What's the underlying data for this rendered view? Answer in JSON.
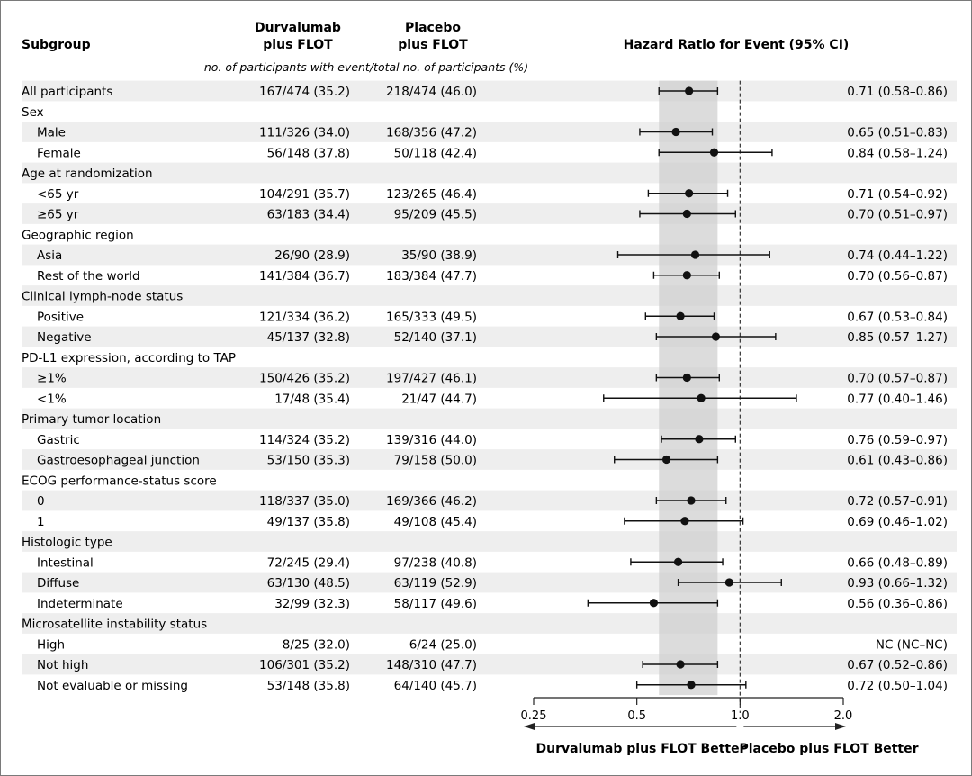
{
  "chart_data": {
    "type": "forest",
    "headers": {
      "subgroup": "Subgroup",
      "col1_line1": "Durvalumab",
      "col1_line2": "plus FLOT",
      "col2_line1": "Placebo",
      "col2_line2": "plus FLOT",
      "hr_title": "Hazard Ratio for Event (95% CI)",
      "subheader": "no. of participants with event/total no. of participants (%)"
    },
    "x_scale": "log",
    "xlim": [
      0.25,
      2.0
    ],
    "ticks": [
      0.25,
      0.5,
      1.0,
      2.0
    ],
    "tick_labels": [
      "0.25",
      "0.5",
      "1.0",
      "2.0"
    ],
    "reference_line": 1.0,
    "overall_ci_band": [
      0.58,
      0.86
    ],
    "left_direction": "Durvalumab plus FLOT Better",
    "right_direction": "Placebo plus FLOT Better",
    "rows": [
      {
        "label": "All participants",
        "indent": 0,
        "shaded": true,
        "durva": "167/474 (35.2)",
        "placebo": "218/474 (46.0)",
        "hr": 0.71,
        "lo": 0.58,
        "hi": 0.86,
        "hr_text": "0.71 (0.58–0.86)"
      },
      {
        "label": "Sex",
        "indent": 0,
        "shaded": false,
        "header": true
      },
      {
        "label": "Male",
        "indent": 1,
        "shaded": true,
        "durva": "111/326 (34.0)",
        "placebo": "168/356 (47.2)",
        "hr": 0.65,
        "lo": 0.51,
        "hi": 0.83,
        "hr_text": "0.65 (0.51–0.83)"
      },
      {
        "label": "Female",
        "indent": 1,
        "shaded": false,
        "durva": "56/148 (37.8)",
        "placebo": "50/118 (42.4)",
        "hr": 0.84,
        "lo": 0.58,
        "hi": 1.24,
        "hr_text": "0.84 (0.58–1.24)"
      },
      {
        "label": "Age at randomization",
        "indent": 0,
        "shaded": true,
        "header": true
      },
      {
        "label": "<65 yr",
        "indent": 1,
        "shaded": false,
        "durva": "104/291 (35.7)",
        "placebo": "123/265 (46.4)",
        "hr": 0.71,
        "lo": 0.54,
        "hi": 0.92,
        "hr_text": "0.71 (0.54–0.92)"
      },
      {
        "label": "≥65 yr",
        "indent": 1,
        "shaded": true,
        "durva": "63/183 (34.4)",
        "placebo": "95/209 (45.5)",
        "hr": 0.7,
        "lo": 0.51,
        "hi": 0.97,
        "hr_text": "0.70 (0.51–0.97)"
      },
      {
        "label": "Geographic region",
        "indent": 0,
        "shaded": false,
        "header": true
      },
      {
        "label": "Asia",
        "indent": 1,
        "shaded": true,
        "durva": "26/90 (28.9)",
        "placebo": "35/90 (38.9)",
        "hr": 0.74,
        "lo": 0.44,
        "hi": 1.22,
        "hr_text": "0.74 (0.44–1.22)"
      },
      {
        "label": "Rest of the world",
        "indent": 1,
        "shaded": false,
        "durva": "141/384 (36.7)",
        "placebo": "183/384 (47.7)",
        "hr": 0.7,
        "lo": 0.56,
        "hi": 0.87,
        "hr_text": "0.70 (0.56–0.87)"
      },
      {
        "label": "Clinical lymph-node status",
        "indent": 0,
        "shaded": true,
        "header": true
      },
      {
        "label": "Positive",
        "indent": 1,
        "shaded": false,
        "durva": "121/334 (36.2)",
        "placebo": "165/333 (49.5)",
        "hr": 0.67,
        "lo": 0.53,
        "hi": 0.84,
        "hr_text": "0.67 (0.53–0.84)"
      },
      {
        "label": "Negative",
        "indent": 1,
        "shaded": true,
        "durva": "45/137 (32.8)",
        "placebo": "52/140 (37.1)",
        "hr": 0.85,
        "lo": 0.57,
        "hi": 1.27,
        "hr_text": "0.85 (0.57–1.27)"
      },
      {
        "label": "PD-L1 expression, according to TAP",
        "indent": 0,
        "shaded": false,
        "header": true
      },
      {
        "label": "≥1%",
        "indent": 1,
        "shaded": true,
        "durva": "150/426 (35.2)",
        "placebo": "197/427 (46.1)",
        "hr": 0.7,
        "lo": 0.57,
        "hi": 0.87,
        "hr_text": "0.70 (0.57–0.87)"
      },
      {
        "label": "<1%",
        "indent": 1,
        "shaded": false,
        "durva": "17/48 (35.4)",
        "placebo": "21/47 (44.7)",
        "hr": 0.77,
        "lo": 0.4,
        "hi": 1.46,
        "hr_text": "0.77 (0.40–1.46)"
      },
      {
        "label": "Primary tumor location",
        "indent": 0,
        "shaded": true,
        "header": true
      },
      {
        "label": "Gastric",
        "indent": 1,
        "shaded": false,
        "durva": "114/324 (35.2)",
        "placebo": "139/316 (44.0)",
        "hr": 0.76,
        "lo": 0.59,
        "hi": 0.97,
        "hr_text": "0.76 (0.59–0.97)"
      },
      {
        "label": "Gastroesophageal junction",
        "indent": 1,
        "shaded": true,
        "durva": "53/150 (35.3)",
        "placebo": "79/158 (50.0)",
        "hr": 0.61,
        "lo": 0.43,
        "hi": 0.86,
        "hr_text": "0.61 (0.43–0.86)"
      },
      {
        "label": "ECOG performance-status score",
        "indent": 0,
        "shaded": false,
        "header": true
      },
      {
        "label": "0",
        "indent": 1,
        "shaded": true,
        "durva": "118/337 (35.0)",
        "placebo": "169/366 (46.2)",
        "hr": 0.72,
        "lo": 0.57,
        "hi": 0.91,
        "hr_text": "0.72 (0.57–0.91)"
      },
      {
        "label": "1",
        "indent": 1,
        "shaded": false,
        "durva": "49/137 (35.8)",
        "placebo": "49/108 (45.4)",
        "hr": 0.69,
        "lo": 0.46,
        "hi": 1.02,
        "hr_text": "0.69 (0.46–1.02)"
      },
      {
        "label": "Histologic type",
        "indent": 0,
        "shaded": true,
        "header": true
      },
      {
        "label": "Intestinal",
        "indent": 1,
        "shaded": false,
        "durva": "72/245 (29.4)",
        "placebo": "97/238 (40.8)",
        "hr": 0.66,
        "lo": 0.48,
        "hi": 0.89,
        "hr_text": "0.66 (0.48–0.89)"
      },
      {
        "label": "Diffuse",
        "indent": 1,
        "shaded": true,
        "durva": "63/130 (48.5)",
        "placebo": "63/119 (52.9)",
        "hr": 0.93,
        "lo": 0.66,
        "hi": 1.32,
        "hr_text": "0.93 (0.66–1.32)"
      },
      {
        "label": "Indeterminate",
        "indent": 1,
        "shaded": false,
        "durva": "32/99 (32.3)",
        "placebo": "58/117 (49.6)",
        "hr": 0.56,
        "lo": 0.36,
        "hi": 0.86,
        "hr_text": "0.56 (0.36–0.86)"
      },
      {
        "label": "Microsatellite instability status",
        "indent": 0,
        "shaded": true,
        "header": true
      },
      {
        "label": "High",
        "indent": 1,
        "shaded": false,
        "durva": "8/25 (32.0)",
        "placebo": "6/24 (25.0)",
        "hr": null,
        "lo": null,
        "hi": null,
        "hr_text": "NC (NC–NC)"
      },
      {
        "label": "Not high",
        "indent": 1,
        "shaded": true,
        "durva": "106/301 (35.2)",
        "placebo": "148/310 (47.7)",
        "hr": 0.67,
        "lo": 0.52,
        "hi": 0.86,
        "hr_text": "0.67 (0.52–0.86)"
      },
      {
        "label": "Not evaluable or missing",
        "indent": 1,
        "shaded": false,
        "durva": "53/148 (35.8)",
        "placebo": "64/140 (45.7)",
        "hr": 0.72,
        "lo": 0.5,
        "hi": 1.04,
        "hr_text": "0.72 (0.50–1.04)"
      }
    ]
  }
}
